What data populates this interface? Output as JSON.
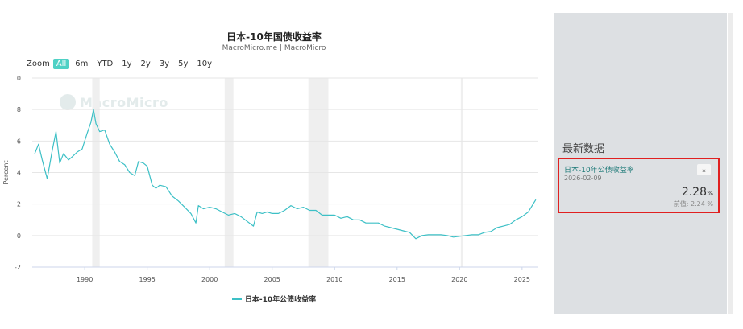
{
  "chart_data": {
    "type": "line",
    "title": "日本-10年国债收益率",
    "subtitle": "MacroMicro.me | MacroMicro",
    "ylabel": "Percent",
    "ylim": [
      -2,
      10
    ],
    "xlim": [
      1985.8,
      2026.3
    ],
    "y_ticks": [
      "10",
      "8",
      "6",
      "4",
      "2",
      "0",
      "-2"
    ],
    "x_ticks": [
      "1990",
      "1995",
      "2000",
      "2005",
      "2010",
      "2015",
      "2020",
      "2025"
    ],
    "grid": true,
    "legend_position": "bottom",
    "recession_bands": [
      [
        1990.6,
        1991.2
      ],
      [
        2001.2,
        2001.9
      ],
      [
        2007.9,
        2009.5
      ],
      [
        2020.1,
        2020.3
      ]
    ],
    "series": [
      {
        "name": "日本-10年公债收益率",
        "color": "#3dc0c6",
        "x": [
          1986.0,
          1986.3,
          1986.6,
          1987.0,
          1987.4,
          1987.7,
          1988.0,
          1988.3,
          1988.7,
          1989.0,
          1989.4,
          1989.8,
          1990.2,
          1990.5,
          1990.7,
          1990.9,
          1991.2,
          1991.6,
          1992.0,
          1992.4,
          1992.8,
          1993.2,
          1993.6,
          1994.0,
          1994.3,
          1994.7,
          1995.0,
          1995.4,
          1995.7,
          1996.0,
          1996.5,
          1997.0,
          1997.5,
          1998.0,
          1998.5,
          1998.9,
          1999.1,
          1999.5,
          2000.0,
          2000.5,
          2001.0,
          2001.5,
          2002.0,
          2002.5,
          2003.0,
          2003.5,
          2003.8,
          2004.2,
          2004.6,
          2005.0,
          2005.5,
          2006.0,
          2006.5,
          2007.0,
          2007.5,
          2008.0,
          2008.5,
          2009.0,
          2009.5,
          2010.0,
          2010.5,
          2011.0,
          2011.5,
          2012.0,
          2012.5,
          2013.0,
          2013.5,
          2014.0,
          2014.5,
          2015.0,
          2015.5,
          2016.0,
          2016.5,
          2017.0,
          2017.5,
          2018.0,
          2018.5,
          2019.0,
          2019.5,
          2020.0,
          2020.5,
          2021.0,
          2021.5,
          2022.0,
          2022.5,
          2023.0,
          2023.5,
          2024.0,
          2024.5,
          2025.0,
          2025.5,
          2026.1
        ],
        "y": [
          5.2,
          5.8,
          4.8,
          3.6,
          5.4,
          6.6,
          4.6,
          5.2,
          4.8,
          5.0,
          5.3,
          5.5,
          6.5,
          7.2,
          8.0,
          7.1,
          6.6,
          6.7,
          5.8,
          5.3,
          4.7,
          4.5,
          4.0,
          3.8,
          4.7,
          4.6,
          4.4,
          3.2,
          3.0,
          3.2,
          3.1,
          2.5,
          2.2,
          1.8,
          1.4,
          0.8,
          1.9,
          1.7,
          1.8,
          1.7,
          1.5,
          1.3,
          1.4,
          1.2,
          0.9,
          0.6,
          1.5,
          1.4,
          1.5,
          1.4,
          1.4,
          1.6,
          1.9,
          1.7,
          1.8,
          1.6,
          1.6,
          1.3,
          1.3,
          1.3,
          1.1,
          1.2,
          1.0,
          1.0,
          0.8,
          0.8,
          0.8,
          0.6,
          0.5,
          0.4,
          0.3,
          0.2,
          -0.2,
          0.0,
          0.05,
          0.05,
          0.05,
          0.0,
          -0.1,
          -0.05,
          0.0,
          0.05,
          0.05,
          0.2,
          0.25,
          0.5,
          0.6,
          0.7,
          1.0,
          1.2,
          1.5,
          2.28
        ]
      }
    ]
  },
  "range_selector": {
    "zoom_label": "Zoom",
    "buttons": [
      "All",
      "6m",
      "YTD",
      "1y",
      "2y",
      "3y",
      "5y",
      "10y"
    ],
    "active": "All"
  },
  "watermark": "MacroMicro",
  "side_panel": {
    "heading": "最新数据",
    "card": {
      "name": "日本-10年公债收益率",
      "date": "2026-02-09",
      "value": "2.28",
      "unit": "%",
      "previous": "前值: 2.24 %",
      "download_icon": "download-icon"
    }
  }
}
